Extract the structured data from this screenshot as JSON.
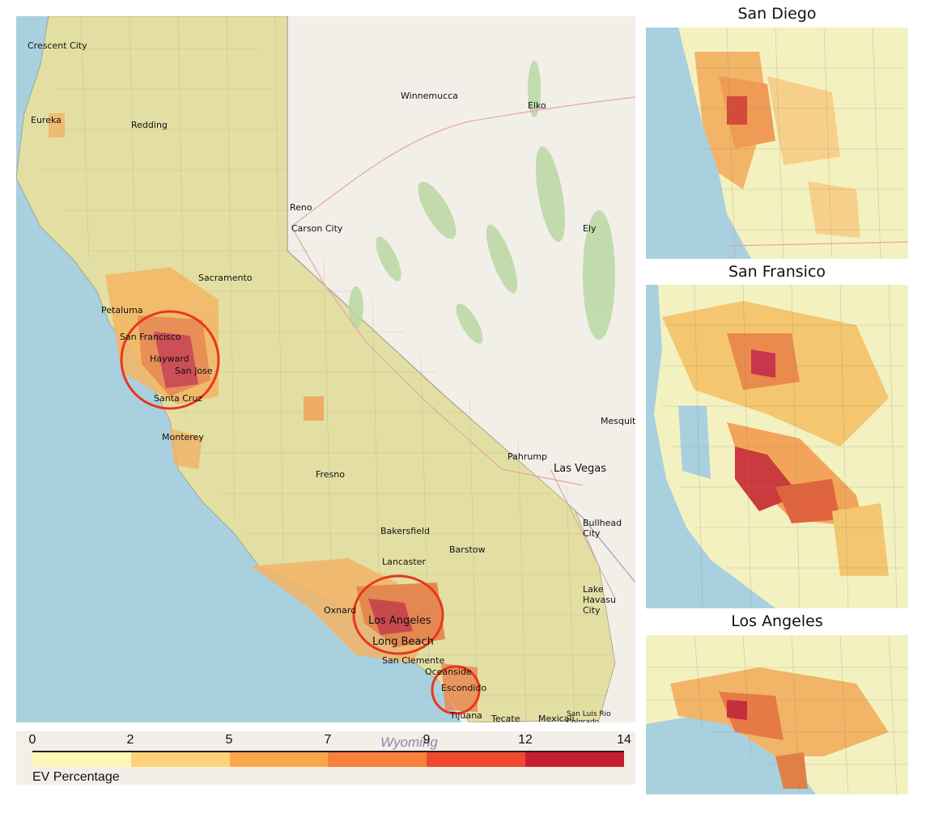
{
  "main_map": {
    "cities": [
      "Crescent City",
      "Eureka",
      "Redding",
      "Winnemucca",
      "Elko",
      "Reno",
      "Carson City",
      "Ely",
      "Petaluma",
      "San Francisco",
      "Hayward",
      "San Jose",
      "Santa Cruz",
      "Monterey",
      "Pahrump",
      "Las Vegas",
      "Mesquite",
      "Bullhead City",
      "Lake Havasu City",
      "Oxnard",
      "Los Angeles",
      "Long Beach",
      "San Clemente",
      "Oceanside",
      "Escondido",
      "Tijuana",
      "Tecate",
      "Mexicali",
      "San Luis Rio Colorado",
      "Barstow",
      "Lancaster",
      "Sacramento",
      "Fresno",
      "Bakersfield"
    ],
    "highlight_circles": [
      "San Francisco Bay Area",
      "Los Angeles",
      "San Diego"
    ]
  },
  "insets": [
    {
      "title": "San Diego"
    },
    {
      "title": "San Fransico"
    },
    {
      "title": "Los Angeles"
    }
  ],
  "legend": {
    "ticks": [
      "0",
      "2",
      "5",
      "7",
      "9",
      "12",
      "14"
    ],
    "caption": "EV Percentage",
    "background_word": "Wyoming",
    "colors": [
      "#fff6b8",
      "#fdd27a",
      "#fca64c",
      "#f97f3a",
      "#ef4a2d",
      "#c81d2e"
    ]
  },
  "colors": {
    "water": "#a9d0de",
    "land": "#f2efe9",
    "tract_low": "#e6e2a6",
    "tract_mid": "#f3c66f",
    "tract_high": "#e06a3b",
    "tract_peak": "#c0283a",
    "circle": "#e8361f"
  }
}
